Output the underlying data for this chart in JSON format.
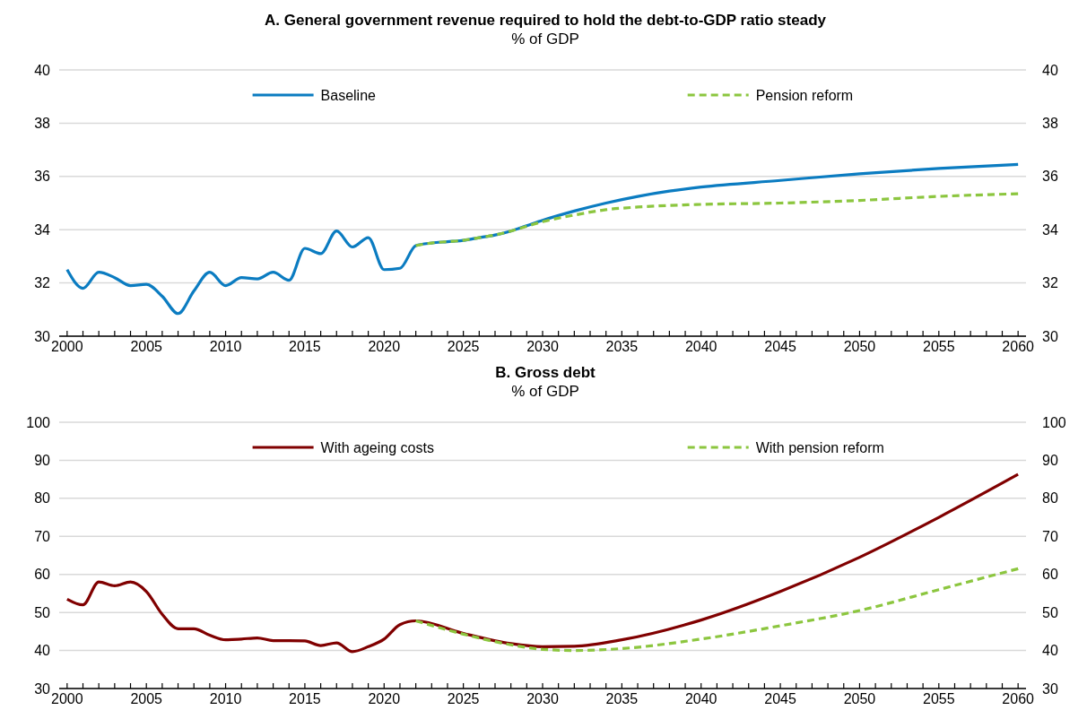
{
  "chart_data": [
    {
      "type": "line",
      "title": "A. General government revenue required to hold the debt-to-GDP ratio steady",
      "subtitle": "% of GDP",
      "xlim": [
        1999.5,
        2060.5
      ],
      "xticks": [
        2000,
        {
          "value": 2001,
          "label": null
        },
        {
          "value": 2002,
          "label": null
        },
        {
          "value": 2003,
          "label": null
        },
        {
          "value": 2004,
          "label": null
        },
        2005,
        {
          "value": 2006,
          "label": null
        },
        {
          "value": 2007,
          "label": null
        },
        {
          "value": 2008,
          "label": null
        },
        {
          "value": 2009,
          "label": null
        },
        2010,
        {
          "value": 2011,
          "label": null
        },
        {
          "value": 2012,
          "label": null
        },
        {
          "value": 2013,
          "label": null
        },
        {
          "value": 2014,
          "label": null
        },
        2015,
        {
          "value": 2016,
          "label": null
        },
        {
          "value": 2017,
          "label": null
        },
        {
          "value": 2018,
          "label": null
        },
        {
          "value": 2019,
          "label": null
        },
        2020,
        {
          "value": 2021,
          "label": null
        },
        {
          "value": 2022,
          "label": null
        },
        {
          "value": 2023,
          "label": null
        },
        {
          "value": 2024,
          "label": null
        },
        2025,
        {
          "value": 2026,
          "label": null
        },
        {
          "value": 2027,
          "label": null
        },
        {
          "value": 2028,
          "label": null
        },
        {
          "value": 2029,
          "label": null
        },
        2030,
        {
          "value": 2031,
          "label": null
        },
        {
          "value": 2032,
          "label": null
        },
        {
          "value": 2033,
          "label": null
        },
        {
          "value": 2034,
          "label": null
        },
        2035,
        {
          "value": 2036,
          "label": null
        },
        {
          "value": 2037,
          "label": null
        },
        {
          "value": 2038,
          "label": null
        },
        {
          "value": 2039,
          "label": null
        },
        2040,
        {
          "value": 2041,
          "label": null
        },
        {
          "value": 2042,
          "label": null
        },
        {
          "value": 2043,
          "label": null
        },
        {
          "value": 2044,
          "label": null
        },
        2045,
        {
          "value": 2046,
          "label": null
        },
        {
          "value": 2047,
          "label": null
        },
        {
          "value": 2048,
          "label": null
        },
        {
          "value": 2049,
          "label": null
        },
        2050,
        {
          "value": 2051,
          "label": null
        },
        {
          "value": 2052,
          "label": null
        },
        {
          "value": 2053,
          "label": null
        },
        {
          "value": 2054,
          "label": null
        },
        2055,
        {
          "value": 2056,
          "label": null
        },
        {
          "value": 2057,
          "label": null
        },
        {
          "value": 2058,
          "label": null
        },
        {
          "value": 2059,
          "label": null
        },
        2060
      ],
      "ylim": [
        30,
        40
      ],
      "yticks": [
        30,
        32,
        34,
        36,
        38,
        40
      ],
      "y2lim": [
        30,
        40
      ],
      "y2ticks": [
        30,
        32,
        34,
        36,
        38,
        40
      ],
      "grid": "y",
      "legend": "top",
      "series": [
        {
          "name": "Baseline",
          "color": "#0b7cc1",
          "line_style": "solid",
          "x": [
            2000,
            2001,
            2002,
            2003,
            2004,
            2005,
            2006,
            2007,
            2008,
            2009,
            2010,
            2011,
            2012,
            2013,
            2014,
            2015,
            2016,
            2017,
            2018,
            2019,
            2020,
            2021,
            2022,
            2023,
            2024,
            2025,
            2026,
            2027,
            2028,
            2029,
            2030,
            2032,
            2034,
            2036,
            2038,
            2040,
            2045,
            2050,
            2055,
            2060
          ],
          "values": [
            32.5,
            31.8,
            32.4,
            32.2,
            31.9,
            31.95,
            31.5,
            30.85,
            31.7,
            32.4,
            31.9,
            32.2,
            32.15,
            32.4,
            32.1,
            33.3,
            33.1,
            33.95,
            33.35,
            33.7,
            32.5,
            32.55,
            33.4,
            33.5,
            33.55,
            33.6,
            33.7,
            33.8,
            33.95,
            34.15,
            34.35,
            34.7,
            35.0,
            35.25,
            35.45,
            35.6,
            35.85,
            36.1,
            36.3,
            36.45
          ]
        },
        {
          "name": "Pension reform",
          "color": "#8cc63f",
          "line_style": "dashed",
          "x": [
            2022,
            2023,
            2024,
            2025,
            2026,
            2027,
            2028,
            2030,
            2032,
            2034,
            2036,
            2040,
            2045,
            2050,
            2055,
            2060
          ],
          "values": [
            33.4,
            33.5,
            33.55,
            33.6,
            33.7,
            33.8,
            33.95,
            34.3,
            34.55,
            34.75,
            34.85,
            34.95,
            35.0,
            35.1,
            35.25,
            35.35
          ]
        }
      ]
    },
    {
      "type": "line",
      "title": "B. Gross debt",
      "subtitle": "% of GDP",
      "xlim": [
        1999.5,
        2060.5
      ],
      "xticks": [
        2000,
        {
          "value": 2001,
          "label": null
        },
        {
          "value": 2002,
          "label": null
        },
        {
          "value": 2003,
          "label": null
        },
        {
          "value": 2004,
          "label": null
        },
        2005,
        {
          "value": 2006,
          "label": null
        },
        {
          "value": 2007,
          "label": null
        },
        {
          "value": 2008,
          "label": null
        },
        {
          "value": 2009,
          "label": null
        },
        2010,
        {
          "value": 2011,
          "label": null
        },
        {
          "value": 2012,
          "label": null
        },
        {
          "value": 2013,
          "label": null
        },
        {
          "value": 2014,
          "label": null
        },
        2015,
        {
          "value": 2016,
          "label": null
        },
        {
          "value": 2017,
          "label": null
        },
        {
          "value": 2018,
          "label": null
        },
        {
          "value": 2019,
          "label": null
        },
        2020,
        {
          "value": 2021,
          "label": null
        },
        {
          "value": 2022,
          "label": null
        },
        {
          "value": 2023,
          "label": null
        },
        {
          "value": 2024,
          "label": null
        },
        2025,
        {
          "value": 2026,
          "label": null
        },
        {
          "value": 2027,
          "label": null
        },
        {
          "value": 2028,
          "label": null
        },
        {
          "value": 2029,
          "label": null
        },
        2030,
        {
          "value": 2031,
          "label": null
        },
        {
          "value": 2032,
          "label": null
        },
        {
          "value": 2033,
          "label": null
        },
        {
          "value": 2034,
          "label": null
        },
        2035,
        {
          "value": 2036,
          "label": null
        },
        {
          "value": 2037,
          "label": null
        },
        {
          "value": 2038,
          "label": null
        },
        {
          "value": 2039,
          "label": null
        },
        2040,
        {
          "value": 2041,
          "label": null
        },
        {
          "value": 2042,
          "label": null
        },
        {
          "value": 2043,
          "label": null
        },
        {
          "value": 2044,
          "label": null
        },
        2045,
        {
          "value": 2046,
          "label": null
        },
        {
          "value": 2047,
          "label": null
        },
        {
          "value": 2048,
          "label": null
        },
        {
          "value": 2049,
          "label": null
        },
        2050,
        {
          "value": 2051,
          "label": null
        },
        {
          "value": 2052,
          "label": null
        },
        {
          "value": 2053,
          "label": null
        },
        {
          "value": 2054,
          "label": null
        },
        2055,
        {
          "value": 2056,
          "label": null
        },
        {
          "value": 2057,
          "label": null
        },
        {
          "value": 2058,
          "label": null
        },
        {
          "value": 2059,
          "label": null
        },
        2060
      ],
      "ylim": [
        30,
        100
      ],
      "yticks": [
        30,
        40,
        50,
        60,
        70,
        80,
        90,
        100
      ],
      "y2lim": [
        30,
        100
      ],
      "y2ticks": [
        30,
        40,
        50,
        60,
        70,
        80,
        90,
        100
      ],
      "grid": "y",
      "legend": "top",
      "series": [
        {
          "name": "With ageing costs",
          "color": "#800000",
          "line_style": "solid",
          "x": [
            2000,
            2001,
            2002,
            2003,
            2004,
            2005,
            2006,
            2007,
            2008,
            2009,
            2010,
            2011,
            2012,
            2013,
            2014,
            2015,
            2016,
            2017,
            2018,
            2019,
            2020,
            2021,
            2022,
            2025,
            2028,
            2030,
            2032,
            2035,
            2040,
            2045,
            2050,
            2055,
            2060
          ],
          "values": [
            53.5,
            52,
            58,
            57,
            58,
            55.5,
            49.5,
            45.7,
            45.7,
            44,
            42.8,
            43,
            43.3,
            42.6,
            42.6,
            42.5,
            41.3,
            42,
            39.7,
            41,
            43,
            46.8,
            47.8,
            44.5,
            41.8,
            41,
            41.1,
            42.8,
            48,
            55.5,
            64.5,
            75,
            86.3
          ]
        },
        {
          "name": "With pension reform",
          "color": "#8cc63f",
          "line_style": "dashed",
          "x": [
            2022,
            2025,
            2028,
            2030,
            2032,
            2035,
            2040,
            2045,
            2050,
            2055,
            2060
          ],
          "values": [
            47.8,
            44.3,
            41.5,
            40.3,
            40,
            40.5,
            43,
            46.5,
            50.5,
            56,
            61.5
          ]
        }
      ]
    }
  ]
}
